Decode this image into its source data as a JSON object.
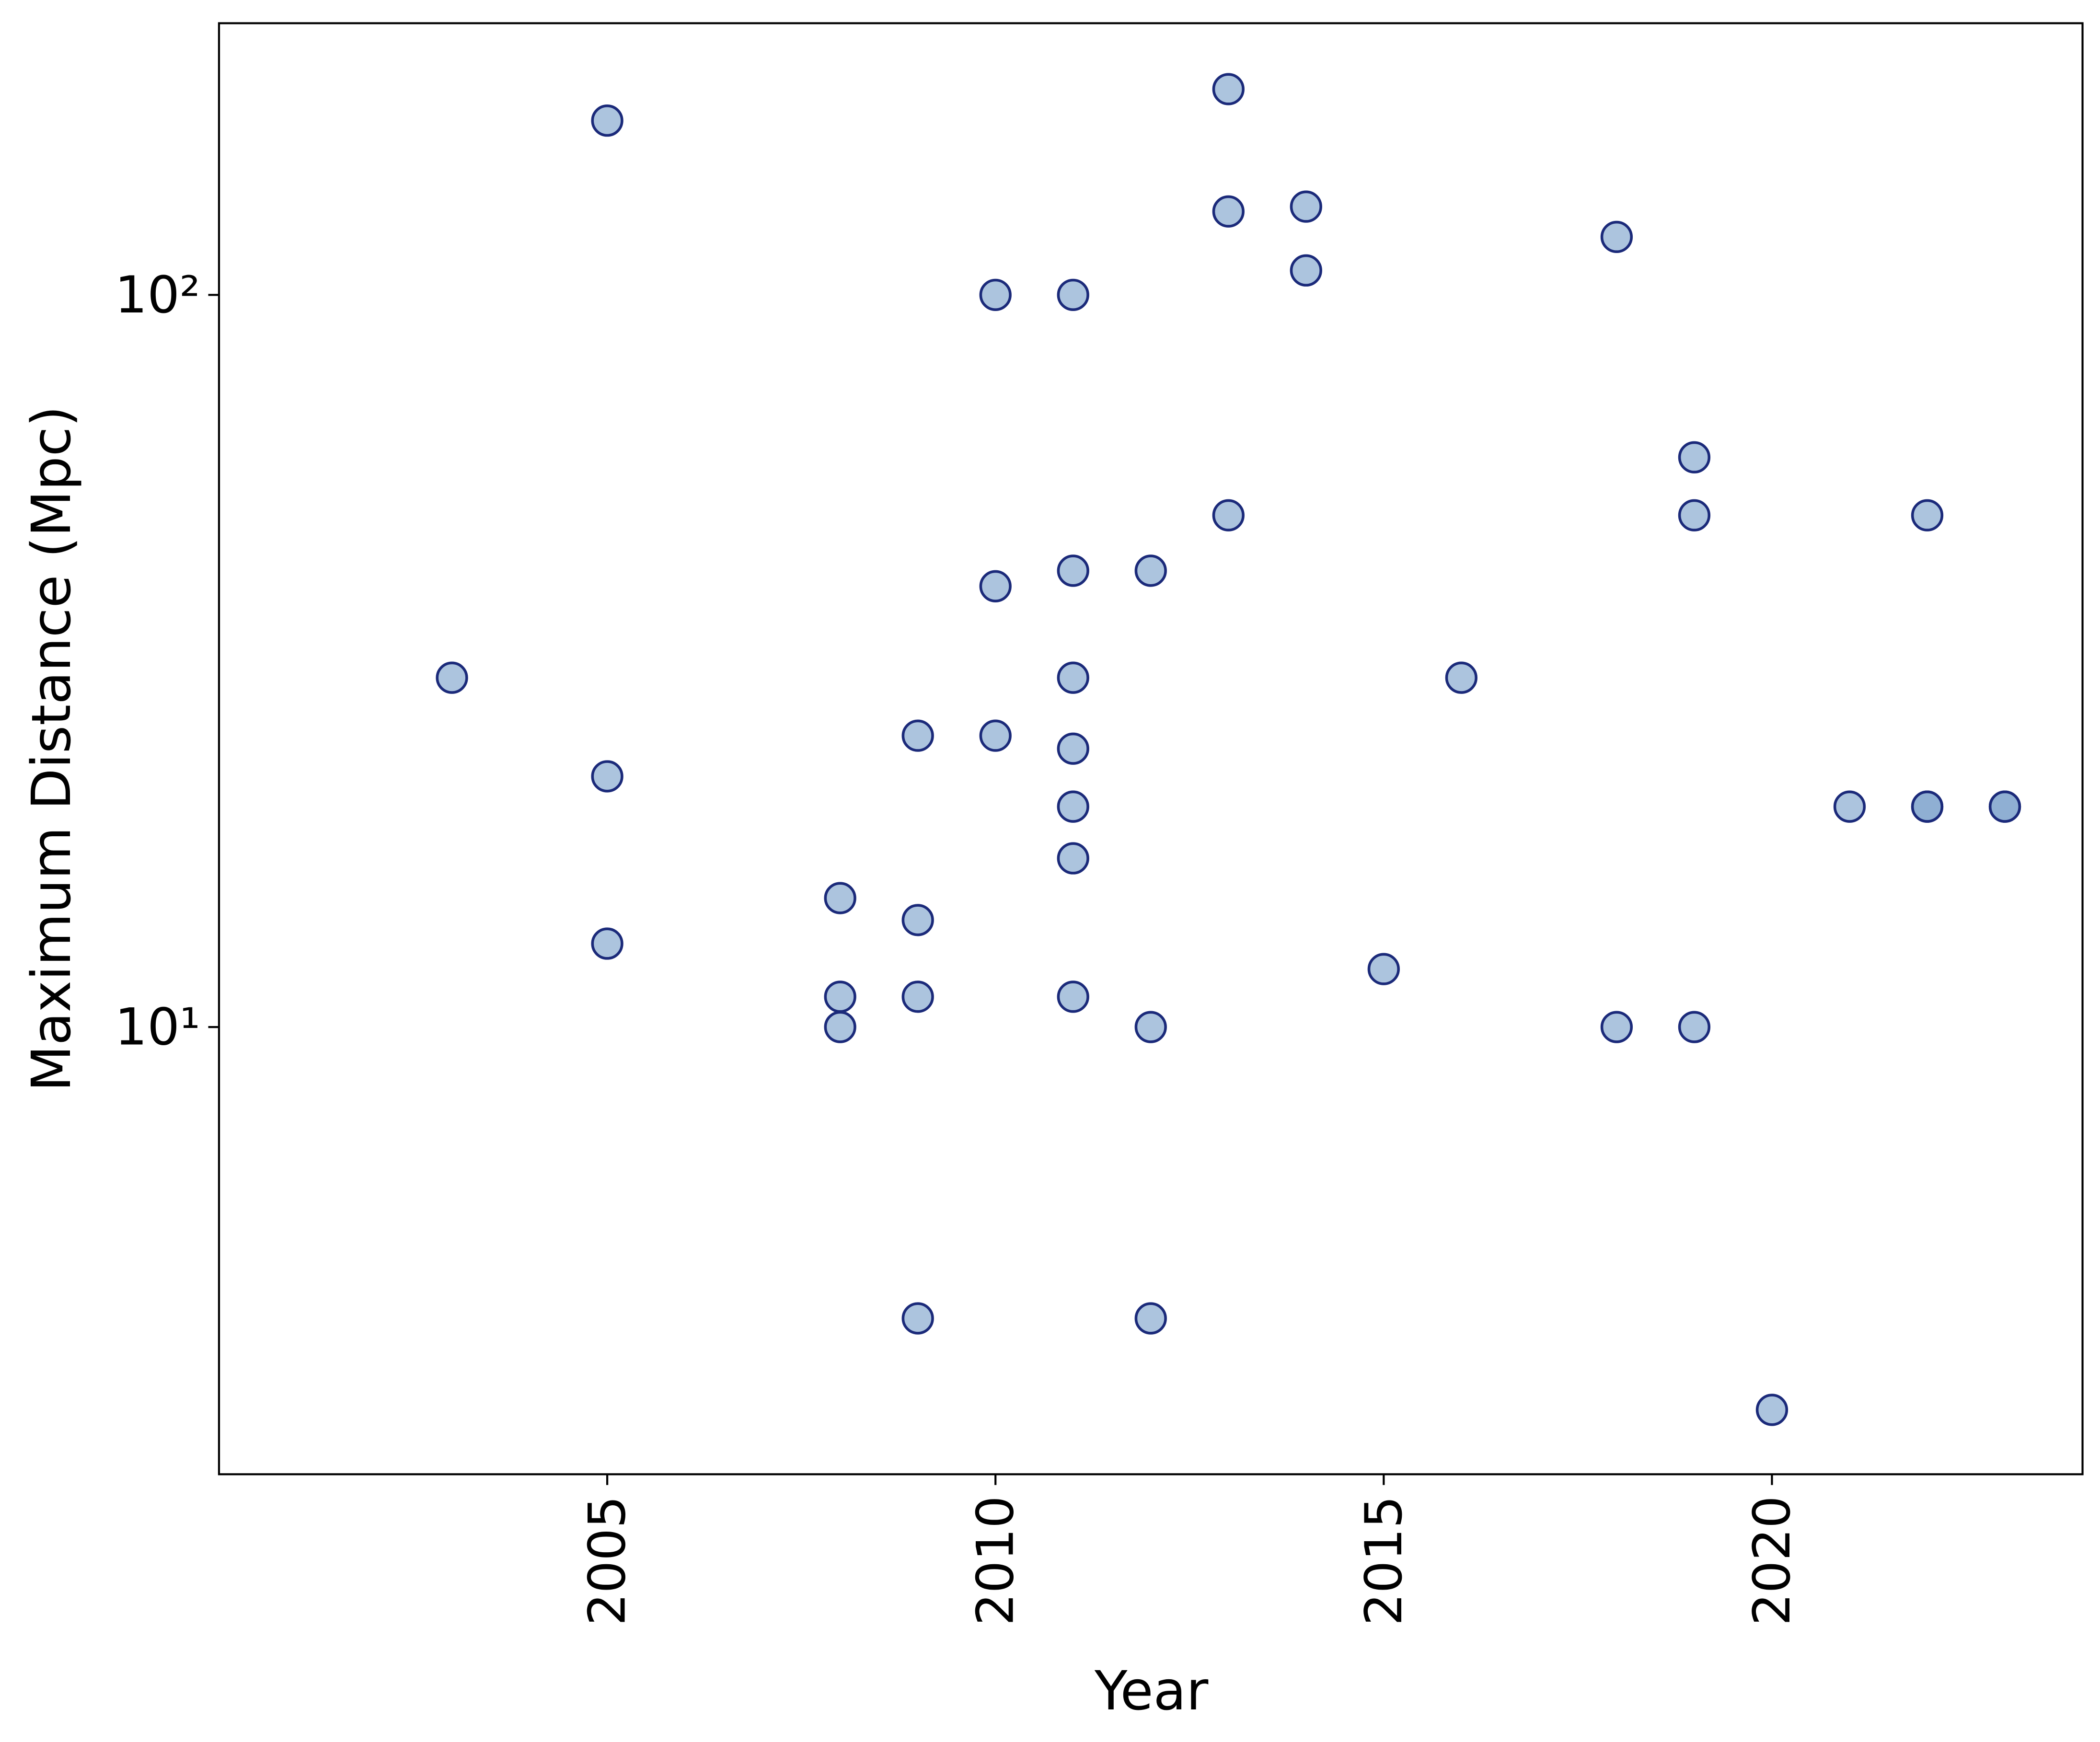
{
  "chart_data": {
    "type": "scatter",
    "xlabel": "Year",
    "ylabel": "Maximum Distance (Mpc)",
    "x": [
      2003,
      2005,
      2005,
      2005,
      2008,
      2008,
      2008,
      2009,
      2009,
      2009,
      2009,
      2010,
      2010,
      2010,
      2011,
      2011,
      2011,
      2011,
      2011,
      2011,
      2011,
      2012,
      2012,
      2012,
      2013,
      2013,
      2013,
      2014,
      2014,
      2015,
      2016,
      2018,
      2018,
      2019,
      2019,
      2019,
      2020,
      2021,
      2022,
      2022,
      2022,
      2023,
      2023
    ],
    "values": [
      30,
      173,
      22,
      13,
      15,
      11,
      10,
      25,
      14,
      11,
      4,
      100,
      40,
      25,
      100,
      42,
      30,
      24,
      20,
      17,
      11,
      42,
      10,
      4,
      191,
      130,
      50,
      132,
      108,
      12,
      30,
      120,
      10,
      60,
      50,
      10,
      3,
      20,
      50,
      20,
      20,
      20,
      20
    ],
    "color": "#7fa4cc",
    "edgecolor": "#1b2a7a",
    "xlim": [
      2000,
      2024
    ],
    "xticks": [
      2005,
      2010,
      2015,
      2020
    ],
    "ylim": [
      2.45,
      235
    ],
    "yscale": "log",
    "yticks": [
      {
        "value": 10,
        "label": "10¹"
      },
      {
        "value": 100,
        "label": "10²"
      }
    ],
    "grid": false
  }
}
